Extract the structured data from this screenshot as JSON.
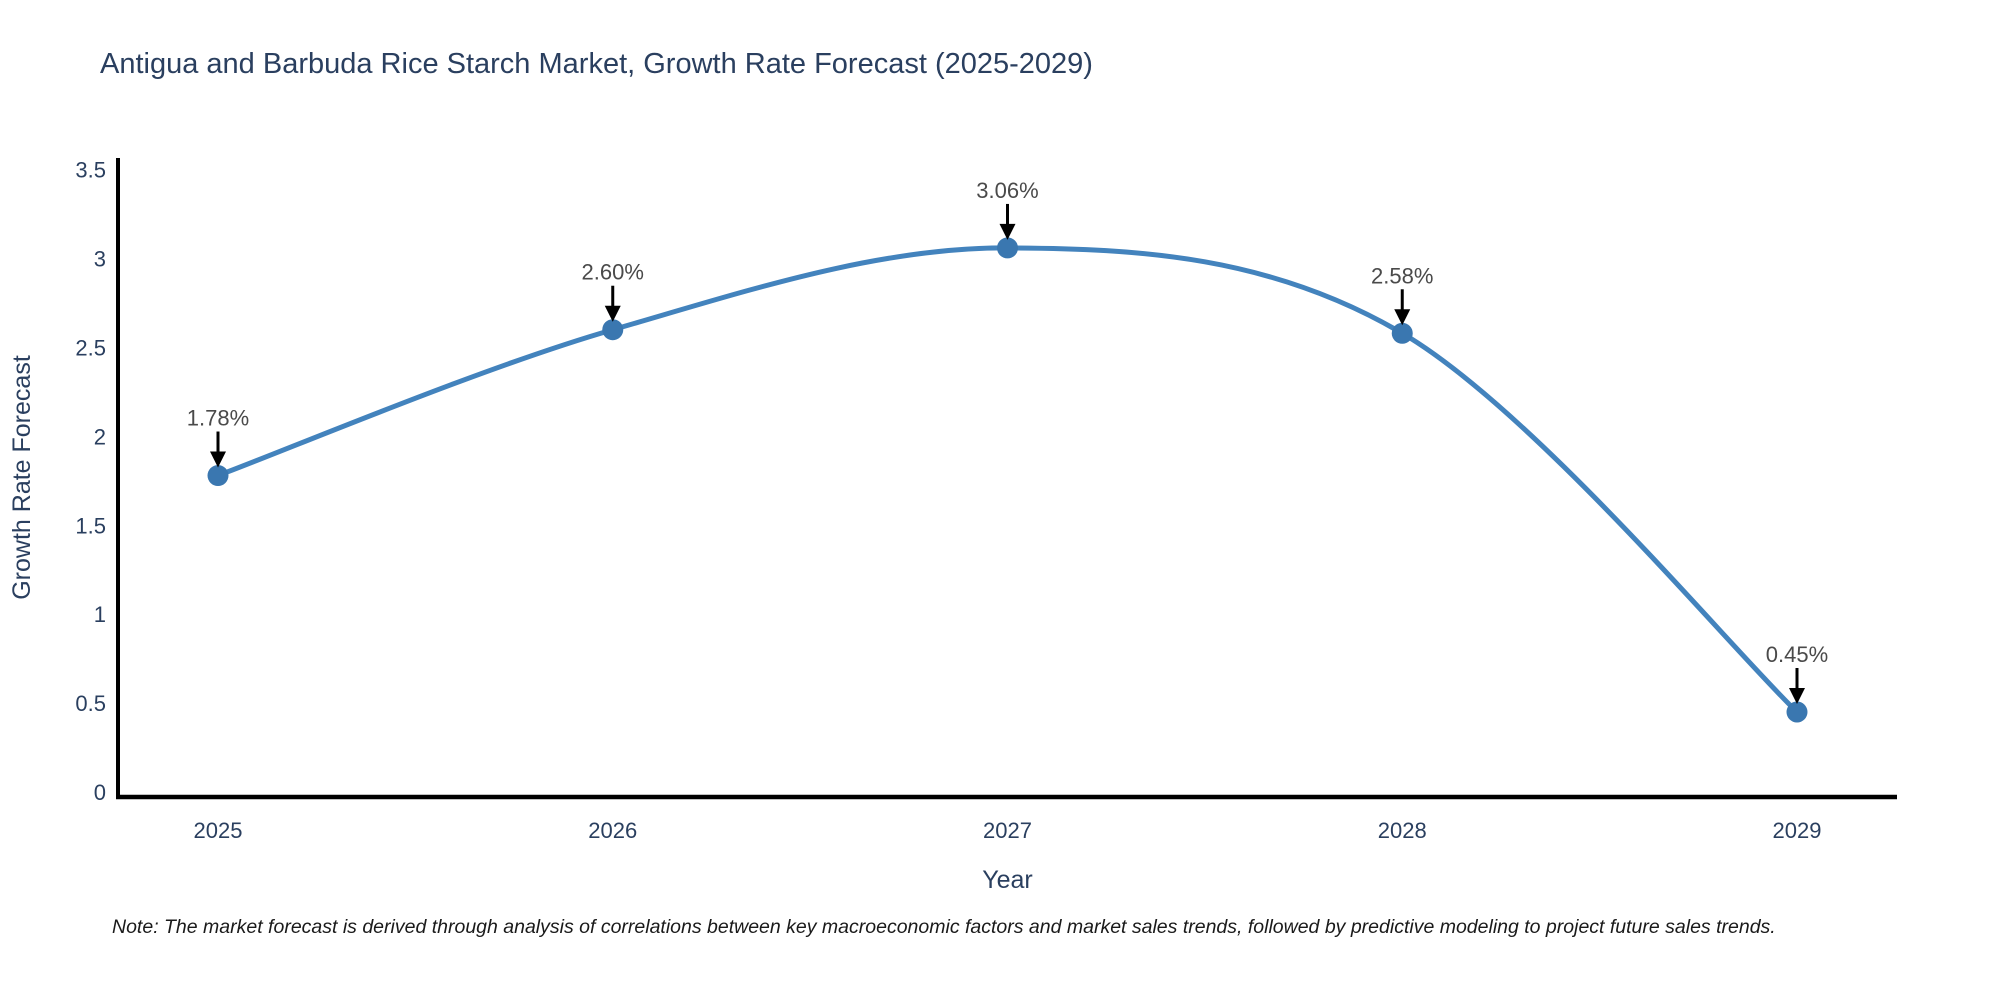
{
  "title": "Antigua and Barbuda Rice Starch Market, Growth Rate Forecast (2025-2029)",
  "note": "Note: The market forecast is derived through analysis of correlations between key macroeconomic factors and market sales trends, followed by predictive modeling to project future sales trends.",
  "chart_data": {
    "type": "line",
    "title": "Antigua and Barbuda Rice Starch Market, Growth Rate Forecast (2025-2029)",
    "categories": [
      "2025",
      "2026",
      "2027",
      "2028",
      "2029"
    ],
    "values": [
      1.78,
      2.6,
      3.06,
      2.58,
      0.45
    ],
    "point_labels": [
      "1.78%",
      "2.60%",
      "3.06%",
      "2.58%",
      "0.45%"
    ],
    "xlabel": "Year",
    "ylabel": "Growth Rate Forecast",
    "ylim": [
      0,
      3.5
    ],
    "yticks": [
      "0",
      "0.5",
      "1",
      "1.5",
      "2",
      "2.5",
      "3",
      "3.5"
    ],
    "grid": false,
    "legend": "none",
    "line_style": "smooth-spline",
    "annotation_style": "down-arrow-to-marker",
    "line_color": "#4383bd",
    "marker_color": "#3a77b0",
    "axis_color": "#000000",
    "arrow_color": "#000000",
    "text_color": "#2a3f5f"
  }
}
